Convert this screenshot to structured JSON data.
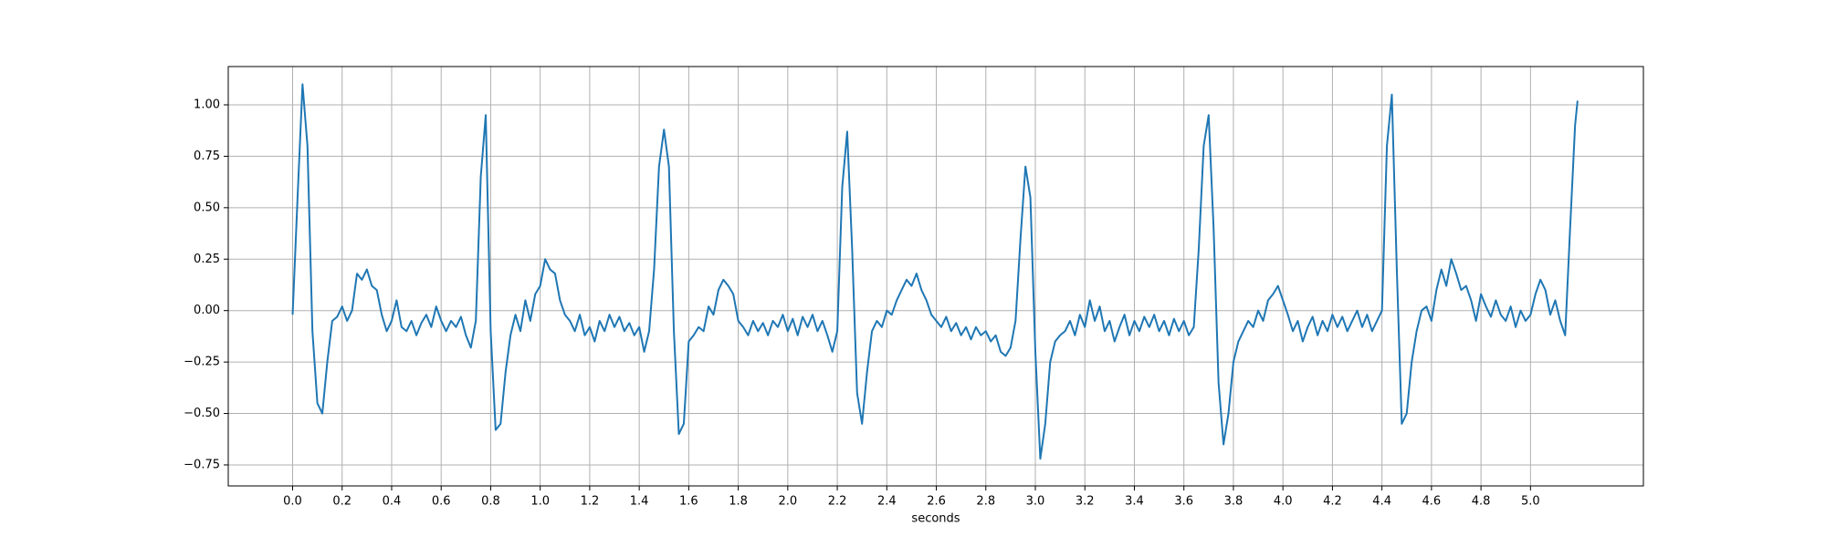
{
  "chart_data": {
    "type": "line",
    "x_label": "seconds",
    "xlim": [
      -0.26,
      5.456
    ],
    "ylim": [
      -0.852,
      1.186
    ],
    "grid": true,
    "xticks": [
      {
        "value": 0,
        "label": "0.0"
      },
      0.2,
      0.4,
      0.6,
      0.8,
      {
        "value": 1,
        "label": "1.0"
      },
      1.2,
      1.4,
      1.6,
      1.8,
      {
        "value": 2,
        "label": "2.0"
      },
      2.2,
      2.4,
      2.6,
      2.8,
      {
        "value": 3,
        "label": "3.0"
      },
      3.2,
      3.4,
      3.6,
      3.8,
      {
        "value": 4,
        "label": "4.0"
      },
      4.2,
      4.4,
      4.6,
      4.8,
      {
        "value": 5,
        "label": "5.0"
      }
    ],
    "yticks": [
      {
        "value": -0.75,
        "label": "−0.75"
      },
      {
        "value": -0.5,
        "label": "−0.50"
      },
      {
        "value": -0.25,
        "label": "−0.25"
      },
      {
        "value": 0,
        "label": "0.00"
      },
      0.25,
      {
        "value": 0.5,
        "label": "0.50"
      },
      0.75,
      {
        "value": 1,
        "label": "1.00"
      }
    ],
    "series": [
      {
        "color": "#1f77b4",
        "x": [
          0,
          0.02,
          0.04,
          0.06,
          0.08,
          0.1,
          0.12,
          0.14,
          0.16,
          0.18,
          0.2,
          0.22,
          0.24,
          0.26,
          0.28,
          0.3,
          0.32,
          0.34,
          0.36,
          0.38,
          0.4,
          0.42,
          0.44,
          0.46,
          0.48,
          0.5,
          0.52,
          0.54,
          0.56,
          0.58,
          0.6,
          0.62,
          0.64,
          0.66,
          0.68,
          0.7,
          0.72,
          0.74,
          0.76,
          0.78,
          0.8,
          0.82,
          0.84,
          0.86,
          0.88,
          0.9,
          0.92,
          0.94,
          0.96,
          0.98,
          1,
          1.02,
          1.04,
          1.06,
          1.08,
          1.1,
          1.12,
          1.14,
          1.16,
          1.18,
          1.2,
          1.22,
          1.24,
          1.26,
          1.28,
          1.3,
          1.32,
          1.34,
          1.36,
          1.38,
          1.4,
          1.42,
          1.44,
          1.46,
          1.48,
          1.5,
          1.52,
          1.54,
          1.56,
          1.58,
          1.6,
          1.62,
          1.64,
          1.66,
          1.68,
          1.7,
          1.72,
          1.74,
          1.76,
          1.78,
          1.8,
          1.82,
          1.84,
          1.86,
          1.88,
          1.9,
          1.92,
          1.94,
          1.96,
          1.98,
          2,
          2.02,
          2.04,
          2.06,
          2.08,
          2.1,
          2.12,
          2.14,
          2.16,
          2.18,
          2.2,
          2.22,
          2.24,
          2.26,
          2.28,
          2.3,
          2.32,
          2.34,
          2.36,
          2.38,
          2.4,
          2.42,
          2.44,
          2.46,
          2.48,
          2.5,
          2.52,
          2.54,
          2.56,
          2.58,
          2.6,
          2.62,
          2.64,
          2.66,
          2.68,
          2.7,
          2.72,
          2.74,
          2.76,
          2.78,
          2.8,
          2.82,
          2.84,
          2.86,
          2.88,
          2.9,
          2.92,
          2.94,
          2.96,
          2.98,
          3,
          3.02,
          3.04,
          3.06,
          3.08,
          3.1,
          3.12,
          3.14,
          3.16,
          3.18,
          3.2,
          3.22,
          3.24,
          3.26,
          3.28,
          3.3,
          3.32,
          3.34,
          3.36,
          3.38,
          3.4,
          3.42,
          3.44,
          3.46,
          3.48,
          3.5,
          3.52,
          3.54,
          3.56,
          3.58,
          3.6,
          3.62,
          3.64,
          3.66,
          3.68,
          3.7,
          3.72,
          3.74,
          3.76,
          3.78,
          3.8,
          3.82,
          3.84,
          3.86,
          3.88,
          3.9,
          3.92,
          3.94,
          3.96,
          3.98,
          4,
          4.02,
          4.04,
          4.06,
          4.08,
          4.1,
          4.12,
          4.14,
          4.16,
          4.18,
          4.2,
          4.22,
          4.24,
          4.26,
          4.28,
          4.3,
          4.32,
          4.34,
          4.36,
          4.38,
          4.4,
          4.42,
          4.44,
          4.46,
          4.48,
          4.5,
          4.52,
          4.54,
          4.56,
          4.58,
          4.6,
          4.62,
          4.64,
          4.66,
          4.68,
          4.7,
          4.72,
          4.74,
          4.76,
          4.78,
          4.8,
          4.82,
          4.84,
          4.86,
          4.88,
          4.9,
          4.92,
          4.94,
          4.96,
          4.98,
          5,
          5.02,
          5.04,
          5.06,
          5.08,
          5.1,
          5.12,
          5.14,
          5.16,
          5.18,
          5.19
        ],
        "values": [
          -0.02,
          0.55,
          1.1,
          0.8,
          -0.1,
          -0.45,
          -0.5,
          -0.25,
          -0.05,
          -0.03,
          0.02,
          -0.05,
          0.0,
          0.18,
          0.15,
          0.2,
          0.12,
          0.1,
          -0.02,
          -0.1,
          -0.05,
          0.05,
          -0.08,
          -0.1,
          -0.05,
          -0.12,
          -0.06,
          -0.02,
          -0.08,
          0.02,
          -0.05,
          -0.1,
          -0.05,
          -0.08,
          -0.03,
          -0.12,
          -0.18,
          -0.05,
          0.65,
          0.95,
          -0.1,
          -0.58,
          -0.55,
          -0.3,
          -0.12,
          -0.02,
          -0.1,
          0.05,
          -0.05,
          0.08,
          0.12,
          0.25,
          0.2,
          0.18,
          0.05,
          -0.02,
          -0.05,
          -0.1,
          -0.02,
          -0.12,
          -0.08,
          -0.15,
          -0.05,
          -0.1,
          -0.02,
          -0.08,
          -0.03,
          -0.1,
          -0.06,
          -0.12,
          -0.08,
          -0.2,
          -0.1,
          0.2,
          0.7,
          0.88,
          0.7,
          -0.1,
          -0.6,
          -0.55,
          -0.15,
          -0.12,
          -0.08,
          -0.1,
          0.02,
          -0.02,
          0.1,
          0.15,
          0.12,
          0.08,
          -0.05,
          -0.08,
          -0.12,
          -0.05,
          -0.1,
          -0.06,
          -0.12,
          -0.05,
          -0.08,
          -0.02,
          -0.1,
          -0.04,
          -0.12,
          -0.03,
          -0.08,
          -0.02,
          -0.1,
          -0.05,
          -0.12,
          -0.2,
          -0.1,
          0.6,
          0.87,
          0.3,
          -0.4,
          -0.55,
          -0.3,
          -0.1,
          -0.05,
          -0.08,
          0.0,
          -0.02,
          0.05,
          0.1,
          0.15,
          0.12,
          0.18,
          0.1,
          0.05,
          -0.02,
          -0.05,
          -0.08,
          -0.03,
          -0.1,
          -0.06,
          -0.12,
          -0.08,
          -0.14,
          -0.08,
          -0.12,
          -0.1,
          -0.15,
          -0.12,
          -0.2,
          -0.22,
          -0.18,
          -0.05,
          0.35,
          0.7,
          0.55,
          -0.2,
          -0.72,
          -0.55,
          -0.25,
          -0.15,
          -0.12,
          -0.1,
          -0.05,
          -0.12,
          -0.02,
          -0.08,
          0.05,
          -0.05,
          0.02,
          -0.1,
          -0.05,
          -0.15,
          -0.08,
          -0.02,
          -0.12,
          -0.05,
          -0.1,
          -0.03,
          -0.08,
          -0.02,
          -0.1,
          -0.05,
          -0.12,
          -0.04,
          -0.1,
          -0.05,
          -0.12,
          -0.08,
          0.3,
          0.8,
          0.95,
          0.4,
          -0.35,
          -0.65,
          -0.5,
          -0.25,
          -0.15,
          -0.1,
          -0.05,
          -0.08,
          0.0,
          -0.05,
          0.05,
          0.08,
          0.12,
          0.05,
          -0.02,
          -0.1,
          -0.05,
          -0.15,
          -0.08,
          -0.03,
          -0.12,
          -0.05,
          -0.1,
          -0.02,
          -0.08,
          -0.03,
          -0.1,
          -0.05,
          0.0,
          -0.08,
          -0.02,
          -0.1,
          -0.05,
          0.0,
          0.8,
          1.05,
          0.2,
          -0.55,
          -0.5,
          -0.25,
          -0.1,
          0.0,
          0.02,
          -0.05,
          0.1,
          0.2,
          0.12,
          0.25,
          0.18,
          0.1,
          0.12,
          0.05,
          -0.05,
          0.08,
          0.02,
          -0.03,
          0.05,
          -0.02,
          -0.05,
          0.02,
          -0.08,
          0.0,
          -0.05,
          -0.02,
          0.08,
          0.15,
          0.1,
          -0.02,
          0.05,
          -0.05,
          -0.12,
          0.4,
          0.9,
          1.02
        ]
      }
    ]
  }
}
